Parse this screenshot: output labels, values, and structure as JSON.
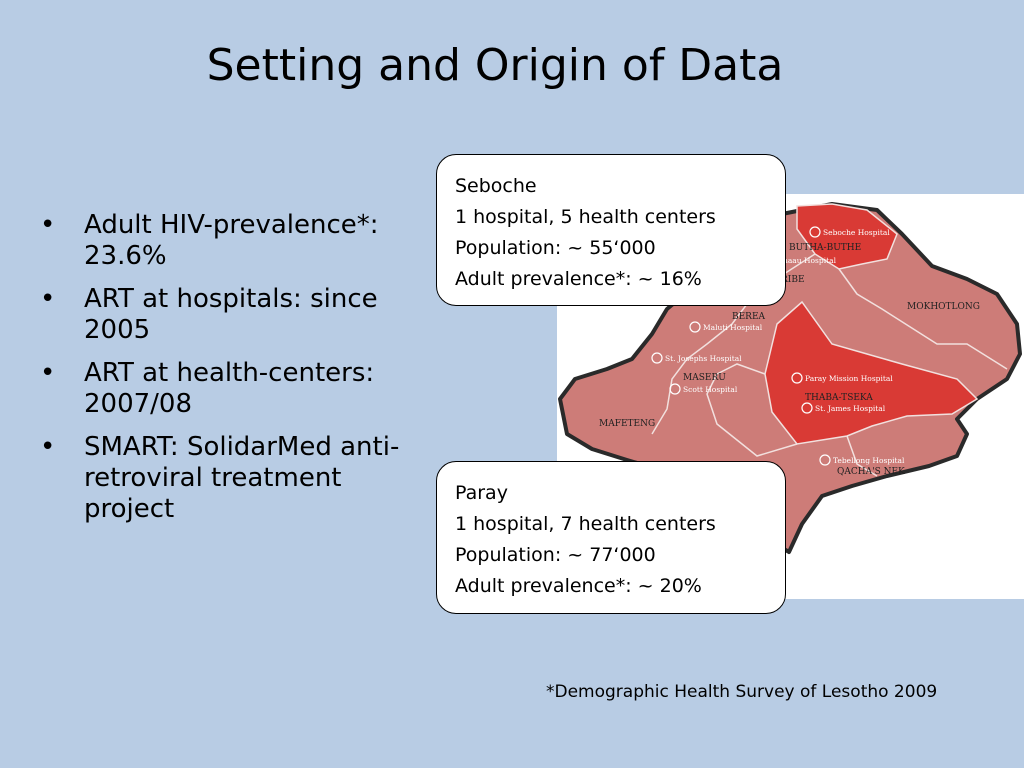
{
  "slide": {
    "title": "Setting and Origin of Data",
    "bullets": [
      {
        "text": "Adult HIV-prevalence*: 23.6%"
      },
      {
        "text": "ART at hospitals: since 2005"
      },
      {
        "text": "ART at health-centers: 2007/08"
      },
      {
        "text": "SMART: SolidarMed anti-retroviral treatment project"
      }
    ],
    "callouts": {
      "seboche": {
        "name": "Seboche",
        "facilities": "1 hospital, 5 health centers",
        "population": "Population: ~ 55‘000",
        "prevalence": "Adult prevalence*: ~ 16%"
      },
      "paray": {
        "name": "Paray",
        "facilities": "1 hospital, 7 health centers",
        "population": "Population: ~ 77‘000",
        "prevalence": "Adult prevalence*: ~ 20%"
      }
    },
    "footnote": "*Demographic Health Survey of Lesotho 2009"
  },
  "map": {
    "districts": {
      "butha_buthe": "BUTHA-BUTHE",
      "leribe": "RIBE",
      "berea": "BEREA",
      "maseru": "MASERU",
      "mafeteng": "MAFETENG",
      "mokhotlong": "MOKHOTLONG",
      "thaba_tseka": "THABA-TSEKA",
      "qachas_nek": "QACHA'S NEK"
    },
    "hospitals": {
      "seboche": "Seboche Hospital",
      "leribe": "haau Hospital",
      "maluti": "Maluti Hospital",
      "st_joseph": "St. Josephs Hospital",
      "scott": "Scott Hospital",
      "paray": "Paray Mission Hospital",
      "st_james": "St. James Hospital",
      "tebellong": "Tebellong Hospital"
    },
    "colors": {
      "background": "#b8cce4",
      "district_fill": "#cd7c78",
      "highlight_fill": "#d93a35",
      "border": "#2a2a2a"
    }
  }
}
